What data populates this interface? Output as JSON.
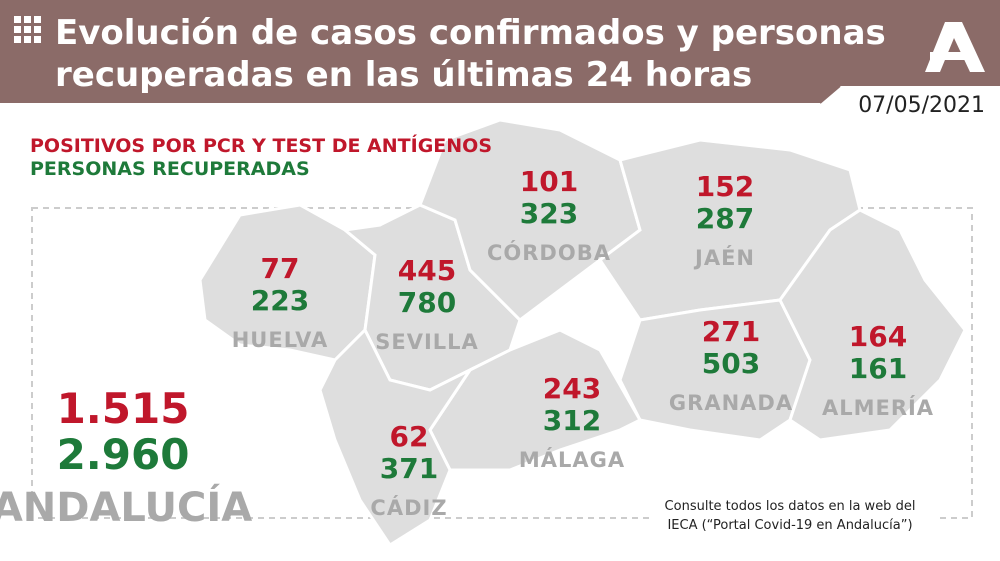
{
  "header": {
    "title_line1": "Evolución de casos confirmados y personas",
    "title_line2": "recuperadas en las últimas 24 horas",
    "date": "07/05/2021"
  },
  "legend": {
    "positives": "POSITIVOS POR PCR Y TEST DE ANTÍGENOS",
    "recovered": "PERSONAS RECUPERADAS"
  },
  "provinces": [
    {
      "name": "HUELVA",
      "positives": "77",
      "recovered": "223"
    },
    {
      "name": "SEVILLA",
      "positives": "445",
      "recovered": "780"
    },
    {
      "name": "CÓRDOBA",
      "positives": "101",
      "recovered": "323"
    },
    {
      "name": "JAÉN",
      "positives": "152",
      "recovered": "287"
    },
    {
      "name": "GRANADA",
      "positives": "271",
      "recovered": "503"
    },
    {
      "name": "ALMERÍA",
      "positives": "164",
      "recovered": "161"
    },
    {
      "name": "MÁLAGA",
      "positives": "243",
      "recovered": "312"
    },
    {
      "name": "CÁDIZ",
      "positives": "62",
      "recovered": "371"
    }
  ],
  "total": {
    "name": "ANDALUCÍA",
    "positives": "1.515",
    "recovered": "2.960"
  },
  "footnote": {
    "line1": "Consulte todos los datos en la web del",
    "line2": "IECA (“Portal Covid-19 en Andalucía”)"
  }
}
